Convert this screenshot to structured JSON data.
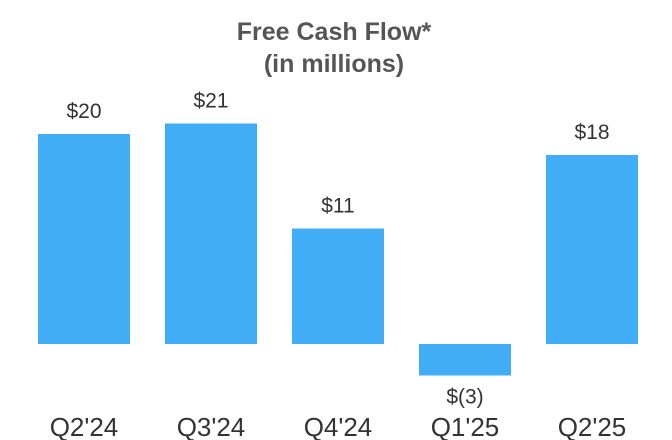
{
  "chart_data": {
    "type": "bar",
    "title": "Free Cash Flow*",
    "subtitle": "(in millions)",
    "categories": [
      "Q2'24",
      "Q3'24",
      "Q4'24",
      "Q1'25",
      "Q2'25"
    ],
    "values": [
      20,
      21,
      11,
      -3,
      18
    ],
    "value_labels": [
      "$20",
      "$21",
      "$11",
      "$(3)",
      "$18"
    ],
    "ylim": [
      -3.5,
      22
    ],
    "grid": false,
    "legend": "none",
    "bar_color": "#42ADF7"
  }
}
